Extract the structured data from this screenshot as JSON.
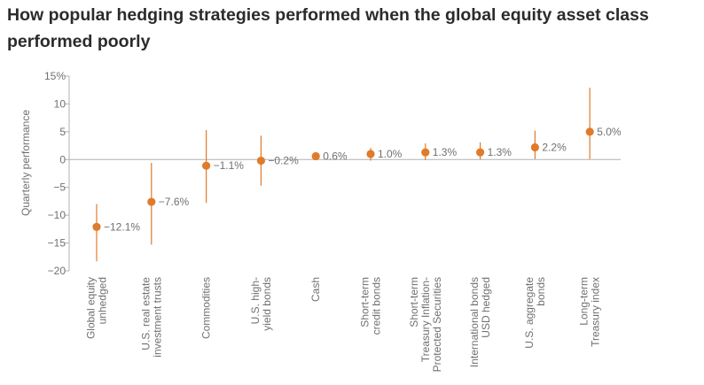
{
  "chart_data": {
    "type": "scatter",
    "title": "How popular hedging strategies performed when the global equity asset class performed poorly",
    "ylabel": "Quarterly performance",
    "xlabel": "",
    "ylim": [
      -20,
      15
    ],
    "yticks": [
      "15%",
      "10",
      "5",
      "0",
      "−5",
      "−10",
      "−15",
      "−20"
    ],
    "ytick_values": [
      15,
      10,
      5,
      0,
      -5,
      -10,
      -15,
      -20
    ],
    "grid": false,
    "marker_color": "#e07b2a",
    "axis_color": "#b0b0b0",
    "categories": [
      {
        "lines": [
          "Global equity",
          "unhedged"
        ],
        "value": -12.1,
        "low": -18.3,
        "high": -8.0,
        "label": "−12.1%"
      },
      {
        "lines": [
          "U.S. real estate",
          "investment trusts"
        ],
        "value": -7.6,
        "low": -15.3,
        "high": -0.6,
        "label": "−7.6%"
      },
      {
        "lines": [
          "Commodities"
        ],
        "value": -1.1,
        "low": -7.8,
        "high": 5.3,
        "label": "−1.1%"
      },
      {
        "lines": [
          "U.S. high-",
          "yield bonds"
        ],
        "value": -0.2,
        "low": -4.7,
        "high": 4.3,
        "label": "−0.2%"
      },
      {
        "lines": [
          "Cash"
        ],
        "value": 0.6,
        "low": 0.0,
        "high": 1.2,
        "label": "0.6%"
      },
      {
        "lines": [
          "Short-term",
          "credit bonds"
        ],
        "value": 1.0,
        "low": -0.2,
        "high": 2.1,
        "label": "1.0%"
      },
      {
        "lines": [
          "Short-term",
          "Treasury Inflation-",
          "Protected Securities"
        ],
        "value": 1.3,
        "low": -0.1,
        "high": 2.9,
        "label": "1.3%"
      },
      {
        "lines": [
          "International bonds",
          "USD hedged"
        ],
        "value": 1.3,
        "low": 0.0,
        "high": 3.1,
        "label": "1.3%"
      },
      {
        "lines": [
          "U.S. aggregate",
          "bonds"
        ],
        "value": 2.2,
        "low": 0.1,
        "high": 5.2,
        "label": "2.2%"
      },
      {
        "lines": [
          "Long-term",
          "Treasury index"
        ],
        "value": 5.0,
        "low": 0.1,
        "high": 12.9,
        "label": "5.0%"
      }
    ]
  }
}
